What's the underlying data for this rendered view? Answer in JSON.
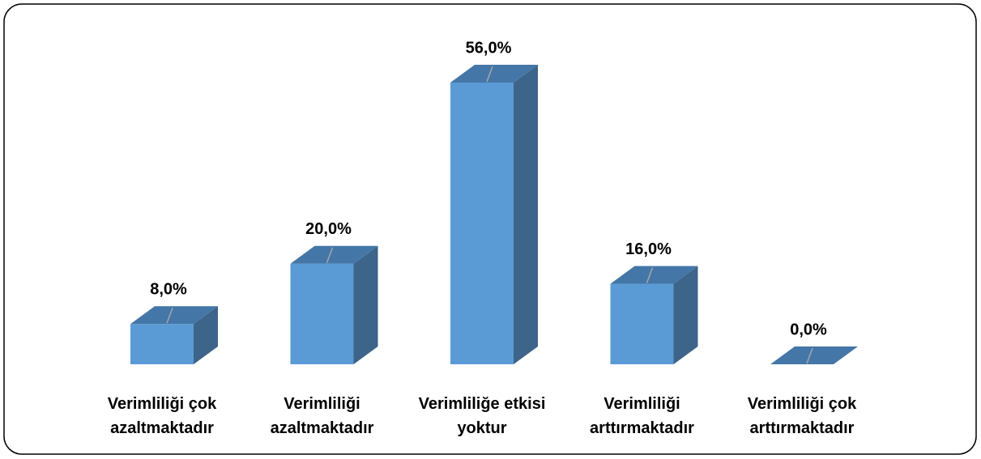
{
  "chart_data": {
    "type": "bar3d",
    "categories": [
      "Verimliliği çok azaltmaktadır",
      "Verimliliği azaltmaktadır",
      "Verimliliğe etkisi yoktur",
      "Verimliliği arttırmaktadır",
      "Verimliliği çok arttırmaktadır"
    ],
    "values": [
      8,
      20,
      56,
      16,
      0
    ],
    "value_labels": [
      "8,0%",
      "20,0%",
      "56,0%",
      "16,0%",
      "0,0%"
    ],
    "color": "#5b9bd5"
  }
}
